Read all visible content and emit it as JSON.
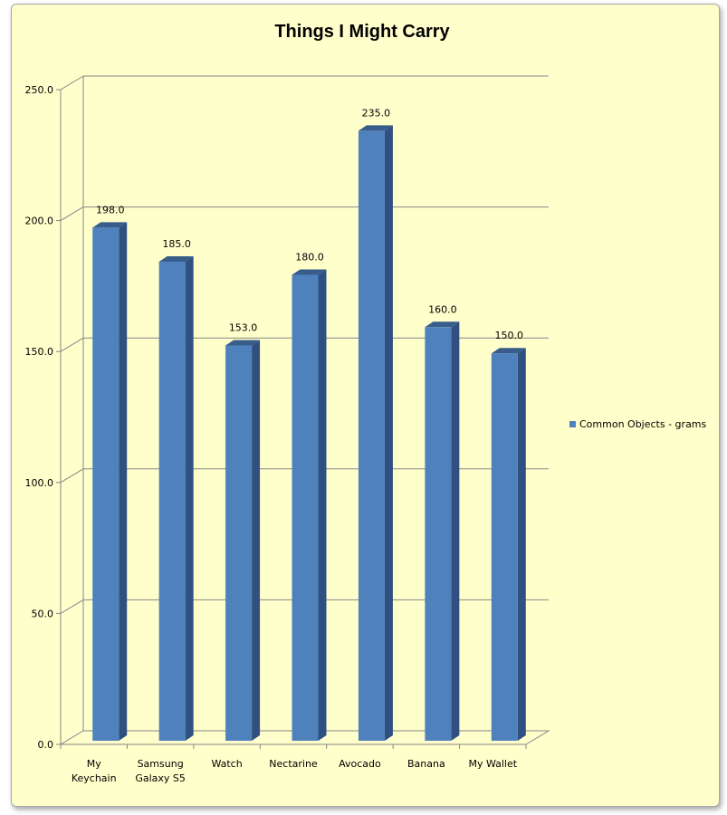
{
  "chart_data": {
    "type": "bar",
    "title": "Things I Might Carry",
    "categories": [
      "My Keychain",
      "Samsung Galaxy S5",
      "Watch",
      "Nectarine",
      "Avocado",
      "Banana",
      "My Wallet"
    ],
    "category_lines": [
      [
        "My",
        "Keychain"
      ],
      [
        "Samsung",
        "Galaxy S5"
      ],
      [
        "Watch"
      ],
      [
        "Nectarine"
      ],
      [
        "Avocado"
      ],
      [
        "Banana"
      ],
      [
        "My Wallet"
      ]
    ],
    "series": [
      {
        "name": "Common Objects - grams",
        "values": [
          198.0,
          185.0,
          153.0,
          180.0,
          235.0,
          160.0,
          150.0
        ]
      }
    ],
    "data_labels": [
      "198.0",
      "185.0",
      "153.0",
      "180.0",
      "235.0",
      "160.0",
      "150.0"
    ],
    "y_ticks": [
      "0.0",
      "50.0",
      "100.0",
      "150.0",
      "200.0",
      "250.0"
    ],
    "ylim": [
      0,
      250
    ],
    "xlabel": "",
    "ylabel": "",
    "grid": true,
    "legend_position": "right",
    "is_3d": true,
    "colors": {
      "bar_front": "#4f81bd",
      "bar_side": "#2f5081",
      "bar_top": "#385d8a",
      "background": "#ffffcc",
      "gridline": "#868686",
      "axis": "#868686"
    }
  }
}
